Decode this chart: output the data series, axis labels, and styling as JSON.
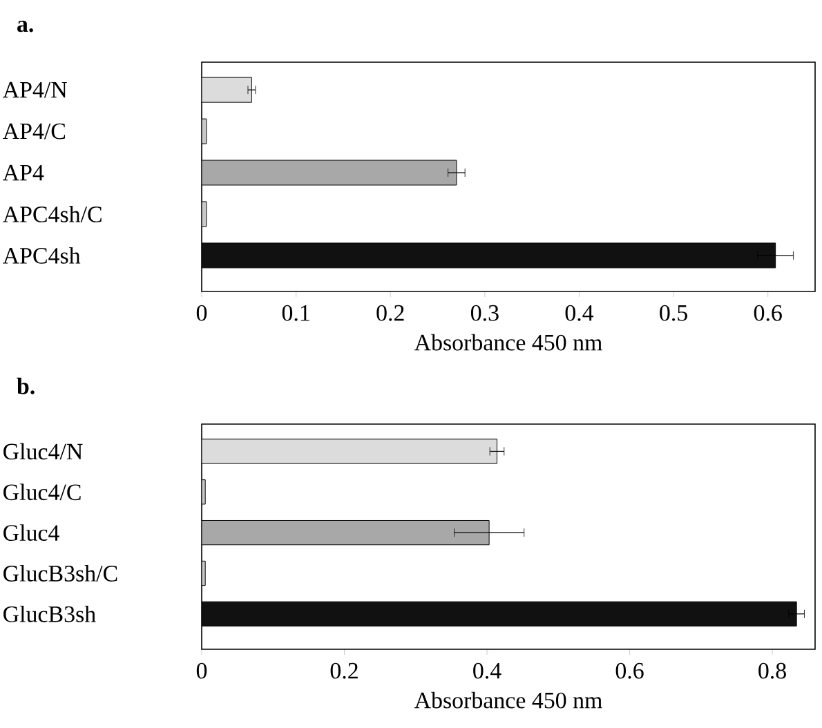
{
  "chart_data": [
    {
      "type": "bar",
      "orientation": "horizontal",
      "title": "a.",
      "xlabel": "Absorbance 450 nm",
      "categories": [
        "AP4/N",
        "AP4/C",
        "AP4",
        "APC4sh/C",
        "APC4sh"
      ],
      "values": [
        0.053,
        0.005,
        0.27,
        0.005,
        0.608
      ],
      "errors": [
        0.004,
        null,
        0.009,
        null,
        0.019
      ],
      "colors": [
        "#dcdcdc",
        "#c8c8c8",
        "#a8a8a8",
        "#c8c8c8",
        "#111111"
      ],
      "xlim": [
        0,
        0.65
      ],
      "xticks": [
        0,
        0.1,
        0.2,
        0.3,
        0.4,
        0.5,
        0.6
      ]
    },
    {
      "type": "bar",
      "orientation": "horizontal",
      "title": "b.",
      "xlabel": "Absorbance 450 nm",
      "categories": [
        "Gluc4/N",
        "Gluc4/C",
        "Gluc4",
        "GlucB3sh/C",
        "GlucB3sh"
      ],
      "values": [
        0.414,
        0.005,
        0.403,
        0.005,
        0.834
      ],
      "errors": [
        0.01,
        null,
        0.049,
        null,
        0.011
      ],
      "colors": [
        "#dcdcdc",
        "#c8c8c8",
        "#a8a8a8",
        "#c8c8c8",
        "#111111"
      ],
      "xlim": [
        0,
        0.86
      ],
      "xticks": [
        0,
        0.2,
        0.4,
        0.6,
        0.8
      ]
    }
  ]
}
